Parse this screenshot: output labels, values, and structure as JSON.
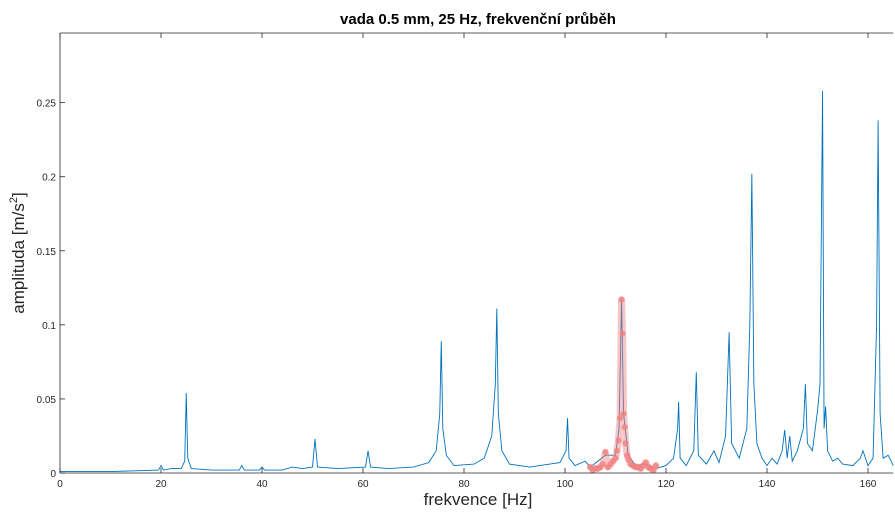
{
  "chart_data": {
    "type": "line",
    "title": "vada 0.5 mm, 25 Hz, frekvenční průběh",
    "xlabel": "frekvence [Hz]",
    "ylabel": [
      "amplituda [m/s",
      "2",
      "]"
    ],
    "xlim": [
      0,
      165
    ],
    "ylim": [
      0,
      0.297
    ],
    "xticks": [
      0,
      20,
      40,
      60,
      80,
      100,
      120,
      140,
      160
    ],
    "yticks": [
      0,
      0.05,
      0.1,
      0.15,
      0.2,
      0.25
    ],
    "grid": false,
    "series": [
      {
        "color": "#0072bd",
        "x": [
          0,
          5,
          10,
          15,
          19.5,
          20,
          20.5,
          22,
          24,
          24.7,
          25,
          25.3,
          26,
          30,
          35.5,
          36,
          36.5,
          39.5,
          40,
          40.5,
          44,
          46,
          48,
          50,
          50.5,
          51,
          55,
          60.5,
          61,
          61.5,
          65,
          70,
          73,
          74.5,
          75.2,
          75.5,
          75.8,
          76.5,
          78,
          82,
          84,
          85.5,
          86.2,
          86.5,
          86.8,
          87.5,
          89,
          93,
          97,
          99,
          100.2,
          100.5,
          100.8,
          102,
          104,
          105,
          108,
          110,
          110.7,
          111.2,
          111.6,
          112.5,
          114,
          116,
          118,
          120,
          121.5,
          122.3,
          122.5,
          122.8,
          124,
          125.5,
          126,
          126.4,
          128,
          129.5,
          130.5,
          131.8,
          132.5,
          133,
          134.5,
          136,
          136.6,
          137,
          137.4,
          138,
          139,
          140,
          141,
          142,
          143,
          143.5,
          144,
          144.5,
          145,
          146,
          147.2,
          147.6,
          148,
          149,
          150,
          150.5,
          151,
          151.3,
          151.6,
          152,
          153,
          154,
          155,
          157,
          158.5,
          159,
          160,
          161,
          161.7,
          162,
          162.4,
          163,
          164,
          165
        ],
        "values": [
          0.001,
          0.001,
          0.001,
          0.0015,
          0.002,
          0.005,
          0.002,
          0.003,
          0.003,
          0.008,
          0.054,
          0.01,
          0.003,
          0.002,
          0.002,
          0.005,
          0.002,
          0.002,
          0.004,
          0.002,
          0.002,
          0.004,
          0.003,
          0.004,
          0.023,
          0.004,
          0.003,
          0.004,
          0.015,
          0.004,
          0.003,
          0.004,
          0.007,
          0.015,
          0.04,
          0.089,
          0.03,
          0.012,
          0.005,
          0.006,
          0.01,
          0.025,
          0.06,
          0.111,
          0.04,
          0.015,
          0.006,
          0.004,
          0.006,
          0.007,
          0.015,
          0.037,
          0.01,
          0.005,
          0.008,
          0.004,
          0.012,
          0.012,
          0.03,
          0.117,
          0.04,
          0.012,
          0.005,
          0.006,
          0.003,
          0.005,
          0.01,
          0.03,
          0.048,
          0.01,
          0.005,
          0.015,
          0.068,
          0.012,
          0.006,
          0.015,
          0.007,
          0.025,
          0.095,
          0.02,
          0.01,
          0.03,
          0.1,
          0.202,
          0.06,
          0.02,
          0.01,
          0.005,
          0.01,
          0.006,
          0.015,
          0.029,
          0.01,
          0.025,
          0.008,
          0.015,
          0.03,
          0.06,
          0.02,
          0.015,
          0.042,
          0.06,
          0.258,
          0.03,
          0.045,
          0.015,
          0.008,
          0.01,
          0.006,
          0.005,
          0.01,
          0.015,
          0.005,
          0.01,
          0.1,
          0.238,
          0.04,
          0.01,
          0.012,
          0.005
        ]
      },
      {
        "color": "#f08080",
        "highlight": true,
        "x": [
          105,
          105.5,
          106,
          106.5,
          107,
          107.5,
          108,
          108.5,
          109,
          109.5,
          110,
          110.3,
          110.6,
          110.9,
          111.2,
          111.4,
          111.6,
          111.8,
          112,
          112.3,
          112.6,
          113,
          113.5,
          114,
          114.5,
          115,
          115.5,
          116,
          116.5,
          117,
          117.5,
          118
        ],
        "values": [
          0.004,
          0.002,
          0.003,
          0.003,
          0.004,
          0.006,
          0.014,
          0.004,
          0.006,
          0.008,
          0.01,
          0.015,
          0.022,
          0.037,
          0.117,
          0.094,
          0.04,
          0.031,
          0.02,
          0.012,
          0.009,
          0.006,
          0.005,
          0.004,
          0.004,
          0.003,
          0.005,
          0.007,
          0.004,
          0.003,
          0.002,
          0.005
        ]
      }
    ]
  }
}
